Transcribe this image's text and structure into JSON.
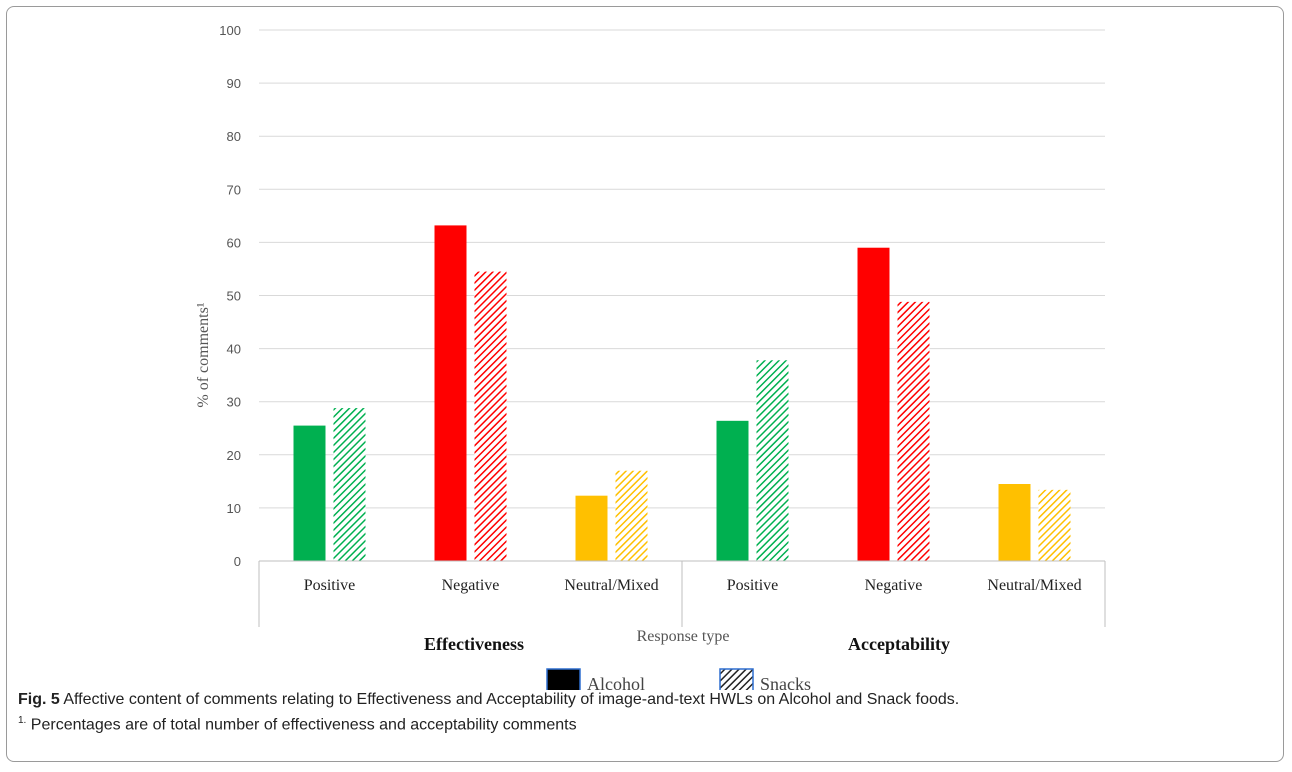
{
  "chart_data": {
    "type": "bar",
    "groups": [
      {
        "label": "Effectiveness",
        "categories": [
          "Positive",
          "Negative",
          "Neutral/Mixed"
        ]
      },
      {
        "label": "Acceptability",
        "categories": [
          "Positive",
          "Negative",
          "Neutral/Mixed"
        ]
      }
    ],
    "categories": [
      "Positive",
      "Negative",
      "Neutral/Mixed",
      "Positive",
      "Negative",
      "Neutral/Mixed"
    ],
    "category_colors": [
      "#00b050",
      "#ff0000",
      "#ffc000",
      "#00b050",
      "#ff0000",
      "#ffc000"
    ],
    "series": [
      {
        "name": "Alcohol",
        "pattern": "solid",
        "values": [
          25.5,
          63.2,
          12.3,
          26.4,
          59.0,
          14.5
        ]
      },
      {
        "name": "Snacks",
        "pattern": "hatched",
        "values": [
          28.8,
          54.5,
          17.0,
          37.8,
          48.8,
          13.4
        ]
      }
    ],
    "ylabel": "% of comments¹",
    "xlabel": "Response type",
    "ylim": [
      0,
      100
    ],
    "yticks": [
      0,
      10,
      20,
      30,
      40,
      50,
      60,
      70,
      80,
      90,
      100
    ],
    "grid": true,
    "legend_placement": "bottom"
  },
  "caption": {
    "fig_label": "Fig. 5",
    "text": " Affective content of comments relating to Effectiveness and Acceptability of image-and-text HWLs on Alcohol and Snack foods.",
    "note_mark": "1.",
    "note": " Percentages are of total number of effectiveness and acceptability comments"
  }
}
